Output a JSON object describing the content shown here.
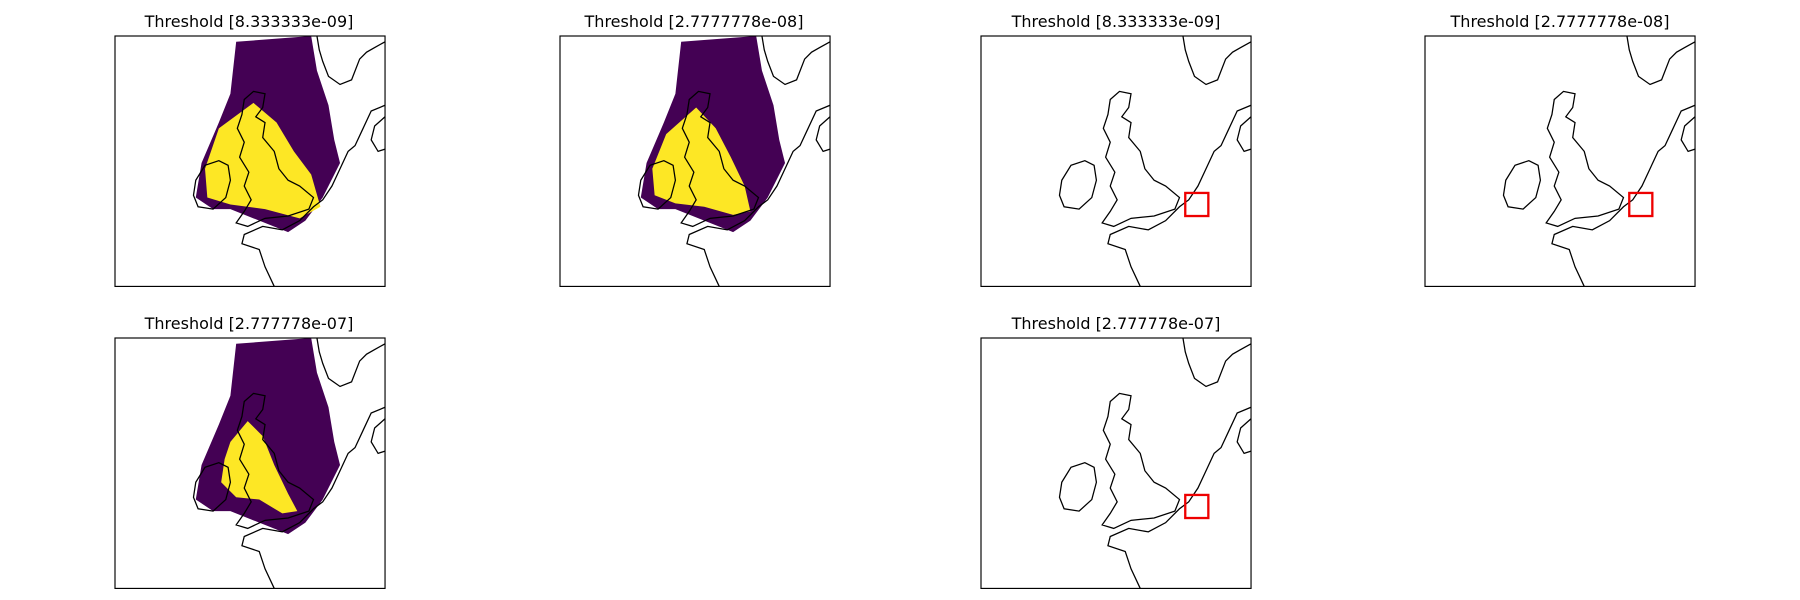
{
  "panels": [
    {
      "title": "Threshold [8.333333e-09]"
    },
    {
      "title": "Threshold [2.7777778e-08]"
    },
    {
      "title": "Threshold [8.333333e-09]"
    },
    {
      "title": "Threshold [2.7777778e-08]"
    },
    {
      "title": "Threshold [2.777778e-07]"
    },
    {
      "title": "Threshold [2.777778e-07]"
    }
  ]
}
